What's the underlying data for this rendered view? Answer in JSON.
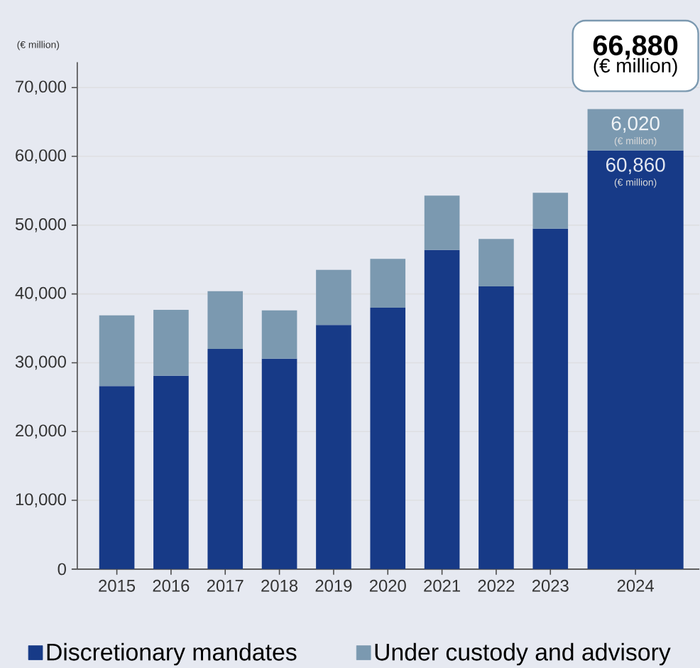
{
  "chart_data": {
    "type": "bar",
    "stacked": true,
    "ylabel": "(€ million)",
    "categories": [
      "2015",
      "2016",
      "2017",
      "2018",
      "2019",
      "2020",
      "2021",
      "2022",
      "2023",
      "2024"
    ],
    "series": [
      {
        "name": "Discretionary mandates",
        "color": "#173a87",
        "values": [
          26600,
          28100,
          32000,
          30600,
          35500,
          38000,
          46400,
          41100,
          49500,
          60860
        ],
        "value_labels": [
          null,
          null,
          null,
          null,
          null,
          null,
          null,
          null,
          null,
          "60,860"
        ]
      },
      {
        "name": "Under custody and advisory",
        "color": "#7b99b0",
        "values": [
          10300,
          9600,
          8400,
          7000,
          8000,
          7100,
          7900,
          6900,
          5200,
          6020
        ],
        "value_labels": [
          null,
          null,
          null,
          null,
          null,
          null,
          null,
          null,
          null,
          "6,020"
        ]
      }
    ],
    "totals": [
      null,
      null,
      null,
      null,
      null,
      null,
      null,
      null,
      null,
      "66,880"
    ],
    "annotations": [
      "(€ million)",
      "(€ million)",
      "(€ million)"
    ],
    "ylim": [
      0,
      73700
    ],
    "yticks": [
      0,
      {
        "value": 10000,
        "label": "10,000"
      },
      {
        "value": 20000,
        "label": "20,000"
      },
      {
        "value": 30000,
        "label": "30,000"
      },
      {
        "value": 40000,
        "label": "40,000"
      },
      {
        "value": 50000,
        "label": "50,000"
      },
      {
        "value": 60000,
        "label": "60,000"
      },
      {
        "value": 70000,
        "label": "70,000"
      }
    ],
    "grid": "y",
    "legend": "bottom"
  }
}
